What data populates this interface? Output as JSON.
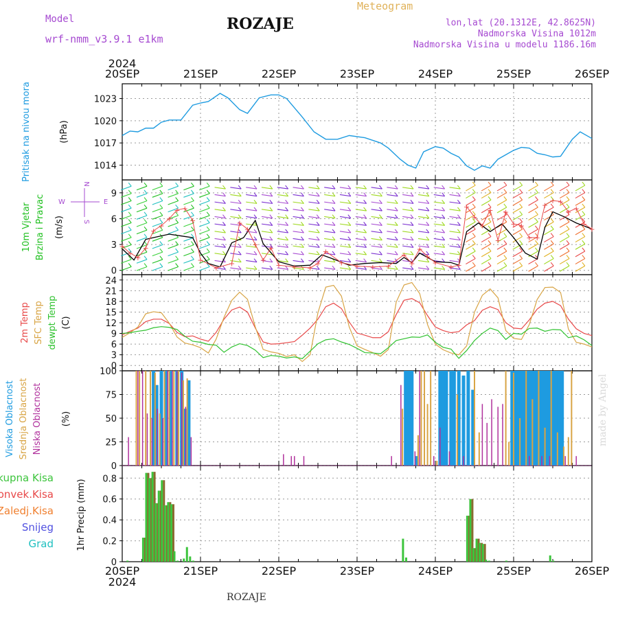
{
  "header": {
    "model_label": "Model",
    "model_name": "wrf-nmm_v3.9.1 e1km",
    "title": "ROZAJE",
    "meteogram": "Meteogram",
    "lonlat": "lon,lat (20.1312E, 42.8625N)",
    "altitude": "Nadmorska Visina 1012m",
    "model_altitude": "Nadmorska Visina u modelu 1186.16m"
  },
  "footer": {
    "station": "ROZAJE",
    "watermark": "made by Angel"
  },
  "colors": {
    "pressure": "#1e9be0",
    "wind_green": "#20c020",
    "wind_purple": "#a64ad1",
    "temp2m": "#e84848",
    "sfc": "#d8a444",
    "dew": "#2ec22e",
    "cloud_high": "#1e9be0",
    "cloud_mid": "#d8a444",
    "cloud_low": "#b0309c",
    "precip_total": "#3cc43c",
    "precip_conv": "#e84848",
    "precip_ice": "#f08030",
    "precip_snow": "#5050e0",
    "precip_grad": "#20c0c0"
  },
  "chart_data": [
    {
      "type": "line",
      "panel": "pressure",
      "ylabel_outer": "Pritisak na nivou mora",
      "ylabel_unit": "(hPa)",
      "ylim": [
        1012,
        1025
      ],
      "yticks": [
        1014,
        1017,
        1020,
        1023
      ],
      "series": [
        {
          "x": [
            0,
            0.1,
            0.2,
            0.3,
            0.4,
            0.5,
            0.6,
            0.75,
            0.9,
            1.0,
            1.1,
            1.25,
            1.35,
            1.5,
            1.6,
            1.75,
            1.9,
            2.0,
            2.1,
            2.3,
            2.45,
            2.6,
            2.75,
            2.9,
            3.1,
            3.3,
            3.4,
            3.55,
            3.65,
            3.75,
            3.85,
            4.0,
            4.1,
            4.2,
            4.3,
            4.4,
            4.5,
            4.6,
            4.7,
            4.8,
            5.0,
            5.1,
            5.2,
            5.3,
            5.4,
            5.5,
            5.6,
            5.75,
            5.85,
            6.0
          ],
          "values": [
            1018.0,
            1018.6,
            1018.5,
            1019.0,
            1019.0,
            1019.8,
            1020.1,
            1020.1,
            1022.1,
            1022.4,
            1022.6,
            1023.7,
            1023.1,
            1021.5,
            1021.0,
            1023.1,
            1023.5,
            1023.5,
            1023.0,
            1020.5,
            1018.5,
            1017.5,
            1017.5,
            1018.0,
            1017.7,
            1017.0,
            1016.3,
            1014.8,
            1014.0,
            1013.6,
            1015.8,
            1016.5,
            1016.3,
            1015.6,
            1015.1,
            1013.9,
            1013.3,
            1013.9,
            1013.6,
            1014.8,
            1016.0,
            1016.4,
            1016.3,
            1015.6,
            1015.4,
            1015.1,
            1015.2,
            1017.5,
            1018.5,
            1017.6
          ]
        }
      ]
    },
    {
      "type": "line",
      "panel": "wind",
      "ylabel_outer": "10m Vjetar Brzina i Pravac",
      "ylabel_unit": "(m/s)",
      "compass": {
        "n": "N",
        "e": "E",
        "w": "W",
        "s": "S"
      },
      "ylim": [
        -0.5,
        10.5
      ],
      "yticks": [
        0,
        3,
        6,
        9
      ],
      "series": [
        {
          "name": "wind_speed",
          "x": [
            0,
            0.15,
            0.3,
            0.45,
            0.6,
            0.75,
            0.9,
            1.0,
            1.1,
            1.25,
            1.4,
            1.55,
            1.7,
            1.8,
            2.0,
            2.2,
            2.4,
            2.55,
            2.7,
            2.9,
            3.1,
            3.3,
            3.5,
            3.6,
            3.7,
            3.8,
            4.0,
            4.2,
            4.3,
            4.4,
            4.55,
            4.7,
            4.85,
            5.0,
            5.15,
            5.3,
            5.4,
            5.5,
            5.65,
            5.8,
            6.0
          ],
          "values": [
            2.5,
            1.2,
            3.6,
            3.9,
            4.2,
            4.0,
            3.8,
            2.0,
            0.8,
            0.4,
            3.2,
            3.8,
            5.8,
            3.1,
            1.0,
            0.5,
            0.6,
            1.8,
            1.3,
            0.6,
            0.8,
            0.9,
            0.8,
            1.5,
            0.9,
            2.0,
            1.0,
            0.9,
            0.6,
            4.5,
            5.5,
            4.5,
            5.4,
            3.8,
            2.0,
            1.3,
            5.0,
            6.8,
            6.2,
            5.5,
            4.8
          ]
        }
      ],
      "gusts": [
        {
          "x": [
            0,
            0.1,
            0.2,
            0.3,
            0.4,
            0.5,
            0.6,
            0.7,
            0.8,
            0.9,
            1.0,
            1.2,
            1.4,
            1.5,
            1.6,
            1.7,
            1.8,
            1.9,
            2.0,
            2.2,
            2.4,
            2.5,
            2.6,
            2.8,
            3.0,
            3.2,
            3.4,
            3.6,
            3.7,
            3.8,
            3.9,
            4.0,
            4.2,
            4.3,
            4.4,
            4.5,
            4.6,
            4.7,
            4.8,
            4.9,
            5.0,
            5.1,
            5.2,
            5.3,
            5.4,
            5.5,
            5.6,
            5.7,
            5.8,
            5.9,
            6.0
          ],
          "values": [
            2.8,
            2.0,
            1.5,
            2.6,
            4.6,
            5.2,
            6.0,
            7.0,
            7.2,
            5.8,
            1.2,
            0.3,
            0.8,
            5.5,
            4.8,
            3.0,
            1.2,
            2.6,
            0.6,
            0.4,
            0.3,
            0.8,
            2.2,
            0.9,
            0.5,
            0.4,
            0.5,
            1.8,
            0.8,
            2.5,
            1.6,
            0.9,
            0.4,
            0.6,
            7.4,
            6.2,
            5.2,
            7.0,
            3.5,
            6.8,
            5.4,
            5.2,
            3.8,
            3.8,
            7.6,
            8.1,
            8.0,
            6.8,
            7.2,
            5.4,
            4.8
          ]
        }
      ]
    },
    {
      "type": "line",
      "panel": "temperature",
      "ylabel_outer": [
        "2m Temp",
        "SFC Temp",
        "dewpt Temp"
      ],
      "ylabel_unit": "(C)",
      "ylim": [
        -1.5,
        25.5
      ],
      "yticks": [
        0,
        3,
        6,
        9,
        12,
        15,
        18,
        21,
        24
      ],
      "x": [
        0,
        0.1,
        0.2,
        0.3,
        0.4,
        0.5,
        0.6,
        0.7,
        0.8,
        0.9,
        1.0,
        1.1,
        1.2,
        1.3,
        1.4,
        1.5,
        1.6,
        1.7,
        1.8,
        1.9,
        2.0,
        2.1,
        2.2,
        2.3,
        2.4,
        2.5,
        2.6,
        2.7,
        2.8,
        2.9,
        3.0,
        3.1,
        3.2,
        3.3,
        3.4,
        3.5,
        3.6,
        3.7,
        3.8,
        3.9,
        4.0,
        4.1,
        4.2,
        4.3,
        4.4,
        4.5,
        4.6,
        4.7,
        4.8,
        4.9,
        5.0,
        5.1,
        5.2,
        5.3,
        5.4,
        5.5,
        5.6,
        5.7,
        5.8,
        5.9,
        6.0
      ],
      "series": [
        {
          "name": "2m Temp",
          "values": [
            8.6,
            9.6,
            10.5,
            12.3,
            13.0,
            13.0,
            11.8,
            9.3,
            8.1,
            8.3,
            7.4,
            6.8,
            9.3,
            13.0,
            15.6,
            16.4,
            15.0,
            10.5,
            6.6,
            6.0,
            6.1,
            6.4,
            6.7,
            8.5,
            10.5,
            13.0,
            16.5,
            17.5,
            16.0,
            12.2,
            9.1,
            8.5,
            7.8,
            7.8,
            9.5,
            14.3,
            18.3,
            18.8,
            17.6,
            14.0,
            10.8,
            9.8,
            9.2,
            9.5,
            11.4,
            12.6,
            15.5,
            16.5,
            15.7,
            12.0,
            10.5,
            10.3,
            12.8,
            15.8,
            17.5,
            18.0,
            16.8,
            13.0,
            10.3,
            9.0,
            8.4
          ]
        },
        {
          "name": "SFC Temp",
          "values": [
            7.9,
            9.2,
            10.8,
            14.5,
            15.1,
            14.8,
            11.9,
            8.0,
            6.3,
            5.8,
            5.0,
            3.5,
            7.4,
            13.5,
            18.3,
            20.6,
            18.6,
            10.8,
            4.5,
            3.8,
            3.4,
            2.5,
            3.0,
            1.1,
            3.0,
            14.8,
            22.0,
            22.5,
            19.5,
            10.8,
            5.5,
            4.5,
            3.6,
            2.6,
            4.5,
            17.8,
            22.6,
            23.3,
            20.2,
            11.5,
            6.0,
            4.4,
            3.5,
            3.0,
            5.5,
            15.0,
            19.7,
            21.5,
            19.0,
            9.8,
            7.6,
            7.3,
            11.5,
            18.5,
            21.9,
            22.0,
            20.5,
            10.2,
            6.5,
            6.0,
            5.2
          ]
        },
        {
          "name": "dewpt Temp",
          "values": [
            9.0,
            9.2,
            9.6,
            9.9,
            10.6,
            10.9,
            10.7,
            10.1,
            8.2,
            6.8,
            6.5,
            5.9,
            5.7,
            3.7,
            5.2,
            6.1,
            5.6,
            4.3,
            2.2,
            2.8,
            2.6,
            2.1,
            2.4,
            1.9,
            4.0,
            6.1,
            7.2,
            7.5,
            6.6,
            5.9,
            4.8,
            3.6,
            3.5,
            3.3,
            5.0,
            7.0,
            7.5,
            8.0,
            7.9,
            8.6,
            6.5,
            5.1,
            4.6,
            2.0,
            4.2,
            7.0,
            9.0,
            10.5,
            9.8,
            7.3,
            9.0,
            8.8,
            10.4,
            10.5,
            9.6,
            10.1,
            10.0,
            7.8,
            8.3,
            7.2,
            5.6
          ]
        }
      ]
    },
    {
      "type": "bar",
      "panel": "clouds",
      "ylabel_outer": [
        "Visoka Oblacnost",
        "Srednja Oblacnost",
        "Niska Oblacnost"
      ],
      "ylabel_unit": "(%)",
      "ylim": [
        0,
        100
      ],
      "yticks": [
        0,
        25,
        50,
        75,
        100
      ],
      "series": [
        {
          "name": "Visoka Oblacnost",
          "x": [
            0.4,
            0.44,
            0.5,
            0.56,
            0.62,
            0.7,
            0.76,
            0.8,
            0.85,
            3.62,
            3.66,
            3.7,
            3.76,
            4.06,
            4.1,
            4.14,
            4.2,
            4.24,
            4.3,
            4.36,
            4.42,
            4.48,
            4.98,
            5.02,
            5.06,
            5.1,
            5.14,
            5.18,
            5.22,
            5.26,
            5.3,
            5.34,
            5.38,
            5.42,
            5.46,
            5.5,
            5.54,
            5.58,
            5.62
          ],
          "values": [
            100,
            85,
            100,
            100,
            100,
            100,
            100,
            60,
            90,
            100,
            100,
            100,
            10,
            100,
            100,
            100,
            100,
            100,
            100,
            95,
            100,
            80,
            100,
            100,
            100,
            100,
            100,
            100,
            100,
            100,
            100,
            100,
            100,
            100,
            100,
            100,
            100,
            100,
            100
          ]
        },
        {
          "name": "Srednja Oblacnost",
          "x": [
            0.18,
            0.22,
            0.3,
            0.36,
            0.42,
            0.48,
            0.54,
            0.6,
            0.66,
            0.72,
            0.78,
            0.83,
            3.58,
            3.78,
            3.82,
            3.86,
            3.9,
            3.94,
            4.02,
            4.28,
            4.5,
            4.56,
            4.9,
            4.94,
            5.0,
            5.08,
            5.16,
            5.24,
            5.32,
            5.4,
            5.48,
            5.56,
            5.64,
            5.7,
            5.74
          ],
          "values": [
            100,
            100,
            100,
            100,
            98,
            55,
            100,
            100,
            100,
            100,
            90,
            92,
            60,
            32,
            100,
            100,
            65,
            100,
            5,
            75,
            100,
            35,
            100,
            25,
            98,
            50,
            100,
            70,
            100,
            40,
            100,
            35,
            20,
            30,
            100
          ]
        },
        {
          "name": "Niska Oblacnost",
          "x": [
            0.08,
            0.2,
            0.26,
            0.32,
            0.38,
            0.45,
            0.52,
            0.58,
            0.64,
            0.7,
            0.76,
            0.81,
            0.88,
            2.06,
            2.16,
            2.2,
            2.32,
            3.44,
            3.56,
            3.74,
            3.8,
            3.98,
            4.06,
            4.18,
            4.36,
            4.6,
            4.66,
            4.72,
            4.8,
            4.86,
            5.2,
            5.36,
            5.46,
            5.66,
            5.8
          ],
          "values": [
            30,
            100,
            100,
            55,
            50,
            60,
            50,
            100,
            100,
            100,
            98,
            62,
            30,
            12,
            10,
            10,
            10,
            10,
            85,
            15,
            100,
            10,
            40,
            15,
            10,
            65,
            45,
            70,
            62,
            65,
            10,
            10,
            10,
            10,
            10
          ]
        }
      ]
    },
    {
      "type": "bar",
      "panel": "precip",
      "ylabel_outer": [
        "Ukupna Kisa",
        "Konvek.Kisa",
        "Zaledj.Kisa",
        "Snijeg",
        "Grad"
      ],
      "ylabel_unit": "1hr Precip (mm)",
      "ylim": [
        0,
        0.92
      ],
      "yticks": [
        0,
        0.2,
        0.4,
        0.6,
        0.8
      ],
      "xticks": [
        "20SEP",
        "21SEP",
        "22SEP",
        "23SEP",
        "24SEP",
        "25SEP",
        "26SEP"
      ],
      "xyear": "2024",
      "x": [
        0.08,
        0.28,
        0.32,
        0.36,
        0.4,
        0.44,
        0.48,
        0.52,
        0.56,
        0.6,
        0.64,
        0.68,
        0.72,
        0.8,
        0.84,
        0.88,
        0.92,
        3.6,
        3.64,
        4.42,
        4.46,
        4.5,
        4.54,
        4.58,
        4.62,
        4.66,
        4.7,
        4.92,
        5.48,
        5.52
      ],
      "series": [
        {
          "name": "Ukupna Kisa",
          "values": [
            0.01,
            0.23,
            0.85,
            0.8,
            0.86,
            0.56,
            0.68,
            0.78,
            0.54,
            0.57,
            0.55,
            0.1,
            0.01,
            0.03,
            0.14,
            0.05,
            0.01,
            0.22,
            0.04,
            0.44,
            0.6,
            0.13,
            0.22,
            0.18,
            0.17,
            0.02,
            0.01,
            0.01,
            0.06,
            0.01
          ]
        },
        {
          "name": "Konvek.Kisa",
          "values": [
            0,
            0.23,
            0.85,
            0.8,
            0.86,
            0.56,
            0.68,
            0.78,
            0.54,
            0.57,
            0.55,
            0,
            0,
            0,
            0,
            0,
            0,
            0,
            0,
            0.44,
            0.6,
            0.13,
            0.22,
            0.18,
            0.17,
            0,
            0,
            0,
            0,
            0
          ]
        }
      ]
    }
  ]
}
